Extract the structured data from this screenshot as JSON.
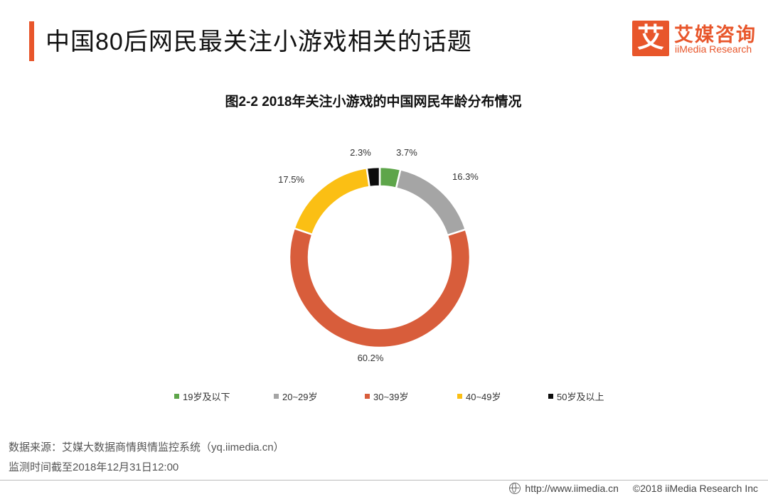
{
  "header": {
    "title": "中国80后网民最关注小游戏相关的话题",
    "logo_mark": "艾",
    "logo_cn": "艾媒咨询",
    "logo_en": "iiMedia Research",
    "accent_color": "#e8562b"
  },
  "chart_data": {
    "type": "pie",
    "donut": true,
    "title": "图2-2 2018年关注小游戏的中国网民年龄分布情况",
    "categories": [
      "19岁及以下",
      "20~29岁",
      "30~39岁",
      "40~49岁",
      "50岁及以上"
    ],
    "values": [
      3.7,
      16.3,
      60.2,
      17.5,
      2.3
    ],
    "labels": [
      "3.7%",
      "16.3%",
      "60.2%",
      "17.5%",
      "2.3%"
    ],
    "colors": [
      "#5ea54a",
      "#a5a5a5",
      "#d85d3b",
      "#fbbf14",
      "#0d0d0d"
    ],
    "legend_position": "bottom"
  },
  "source": {
    "line1": "数据来源：艾媒大数据商情舆情监控系统（yq.iimedia.cn）",
    "line2": "监测时间截至2018年12月31日12:00"
  },
  "footer": {
    "url": "http://www.iimedia.cn",
    "copyright": "©2018  iiMedia Research  Inc"
  }
}
